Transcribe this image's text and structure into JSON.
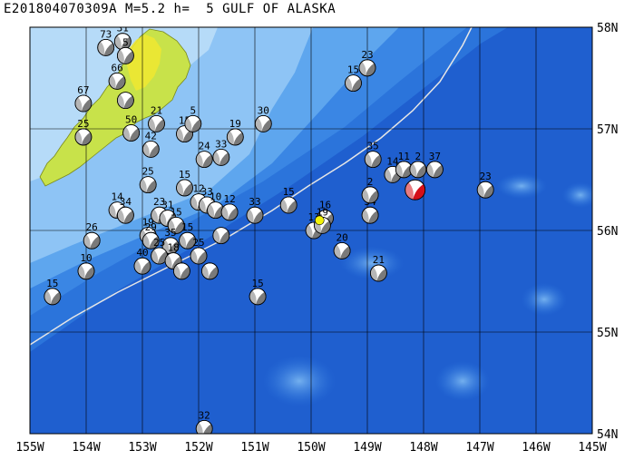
{
  "header": {
    "event_id": "E201804070309A",
    "magnitude": "M=5.2",
    "depth": "h=  5",
    "region": "GULF OF ALASKA"
  },
  "axes": {
    "lon_labels": [
      "155W",
      "154W",
      "153W",
      "152W",
      "151W",
      "150W",
      "149W",
      "148W",
      "147W",
      "146W",
      "145W"
    ],
    "lat_labels": [
      "58N",
      "57N",
      "56N",
      "55N",
      "54N"
    ]
  },
  "colors": {
    "deep_ocean": "#1f5fcf",
    "mid_ocean": "#2e7ae0",
    "shelf": "#5ea6ee",
    "shallow": "#9fcdf6",
    "land": "#c8e24a",
    "trench": "#e6e6e6",
    "main_event": "#d4101a",
    "epicenter": "#f2f20a"
  },
  "events": [
    {
      "lon": -153.65,
      "lat": 57.8,
      "label": "73"
    },
    {
      "lon": -153.35,
      "lat": 57.86,
      "label": "31"
    },
    {
      "lon": -153.3,
      "lat": 57.72,
      "label": "5"
    },
    {
      "lon": -154.05,
      "lat": 57.25,
      "label": "67"
    },
    {
      "lon": -153.45,
      "lat": 57.47,
      "label": "66"
    },
    {
      "lon": -153.3,
      "lat": 57.28,
      "label": ""
    },
    {
      "lon": -154.05,
      "lat": 56.92,
      "label": "25"
    },
    {
      "lon": -153.2,
      "lat": 56.96,
      "label": "50"
    },
    {
      "lon": -152.75,
      "lat": 57.05,
      "label": "21"
    },
    {
      "lon": -152.25,
      "lat": 56.95,
      "label": "15"
    },
    {
      "lon": -152.1,
      "lat": 57.05,
      "label": "5"
    },
    {
      "lon": -152.85,
      "lat": 56.8,
      "label": "42"
    },
    {
      "lon": -151.35,
      "lat": 56.92,
      "label": "19"
    },
    {
      "lon": -150.85,
      "lat": 57.05,
      "label": "30"
    },
    {
      "lon": -151.9,
      "lat": 56.7,
      "label": "24"
    },
    {
      "lon": -151.6,
      "lat": 56.72,
      "label": "33"
    },
    {
      "lon": -152.9,
      "lat": 56.45,
      "label": "25"
    },
    {
      "lon": -152.25,
      "lat": 56.42,
      "label": "15"
    },
    {
      "lon": -153.45,
      "lat": 56.2,
      "label": "14"
    },
    {
      "lon": -152.0,
      "lat": 56.28,
      "label": "12"
    },
    {
      "lon": -151.85,
      "lat": 56.25,
      "label": "33"
    },
    {
      "lon": -153.9,
      "lat": 55.9,
      "label": "26"
    },
    {
      "lon": -153.3,
      "lat": 56.15,
      "label": "34"
    },
    {
      "lon": -152.7,
      "lat": 56.15,
      "label": "23"
    },
    {
      "lon": -152.55,
      "lat": 56.12,
      "label": "31"
    },
    {
      "lon": -152.9,
      "lat": 55.95,
      "label": "19"
    },
    {
      "lon": -152.85,
      "lat": 55.9,
      "label": "29"
    },
    {
      "lon": -152.4,
      "lat": 56.05,
      "label": "15"
    },
    {
      "lon": -151.7,
      "lat": 56.2,
      "label": "10"
    },
    {
      "lon": -151.45,
      "lat": 56.18,
      "label": "12"
    },
    {
      "lon": -151.0,
      "lat": 56.15,
      "label": "33"
    },
    {
      "lon": -150.4,
      "lat": 56.25,
      "label": "15"
    },
    {
      "lon": -152.2,
      "lat": 55.9,
      "label": "15"
    },
    {
      "lon": -152.5,
      "lat": 55.85,
      "label": "35"
    },
    {
      "lon": -152.7,
      "lat": 55.75,
      "label": "25"
    },
    {
      "lon": -152.45,
      "lat": 55.7,
      "label": "18"
    },
    {
      "lon": -152.0,
      "lat": 55.75,
      "label": "25"
    },
    {
      "lon": -151.6,
      "lat": 55.95,
      "label": ""
    },
    {
      "lon": -154.0,
      "lat": 55.6,
      "label": "10"
    },
    {
      "lon": -154.6,
      "lat": 55.35,
      "label": "15"
    },
    {
      "lon": -153.0,
      "lat": 55.65,
      "label": "40"
    },
    {
      "lon": -152.3,
      "lat": 55.6,
      "label": ""
    },
    {
      "lon": -151.8,
      "lat": 55.6,
      "label": ""
    },
    {
      "lon": -150.95,
      "lat": 55.35,
      "label": "15"
    },
    {
      "lon": -149.95,
      "lat": 56.0,
      "label": "13"
    },
    {
      "lon": -149.75,
      "lat": 56.12,
      "label": "16"
    },
    {
      "lon": -149.8,
      "lat": 56.05,
      "label": "19"
    },
    {
      "lon": -149.45,
      "lat": 55.8,
      "label": "20"
    },
    {
      "lon": -148.95,
      "lat": 56.15,
      "label": "34"
    },
    {
      "lon": -148.95,
      "lat": 56.35,
      "label": "2"
    },
    {
      "lon": -148.8,
      "lat": 55.58,
      "label": "21"
    },
    {
      "lon": -149.25,
      "lat": 57.45,
      "label": "15"
    },
    {
      "lon": -149.0,
      "lat": 57.6,
      "label": "23"
    },
    {
      "lon": -148.9,
      "lat": 56.7,
      "label": "35"
    },
    {
      "lon": -148.55,
      "lat": 56.55,
      "label": "14"
    },
    {
      "lon": -148.35,
      "lat": 56.6,
      "label": "11"
    },
    {
      "lon": -148.1,
      "lat": 56.6,
      "label": "2"
    },
    {
      "lon": -147.8,
      "lat": 56.6,
      "label": "37"
    },
    {
      "lon": -146.9,
      "lat": 56.4,
      "label": "23"
    },
    {
      "lon": -151.9,
      "lat": 54.05,
      "label": "32"
    }
  ],
  "main_event": {
    "lon": -148.15,
    "lat": 56.4
  },
  "epicenter": {
    "lon": -149.85,
    "lat": 56.1
  }
}
